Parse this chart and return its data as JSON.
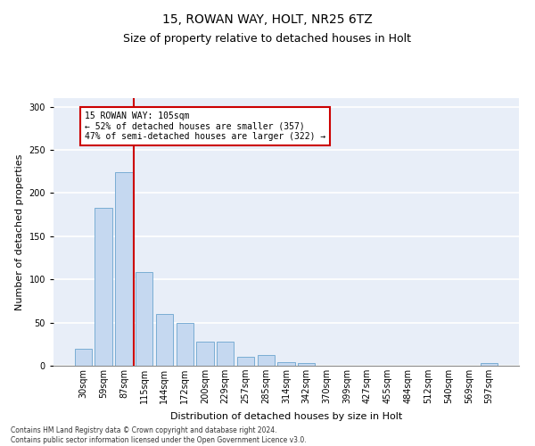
{
  "title1": "15, ROWAN WAY, HOLT, NR25 6TZ",
  "title2": "Size of property relative to detached houses in Holt",
  "xlabel": "Distribution of detached houses by size in Holt",
  "ylabel": "Number of detached properties",
  "bin_labels": [
    "30sqm",
    "59sqm",
    "87sqm",
    "115sqm",
    "144sqm",
    "172sqm",
    "200sqm",
    "229sqm",
    "257sqm",
    "285sqm",
    "314sqm",
    "342sqm",
    "370sqm",
    "399sqm",
    "427sqm",
    "455sqm",
    "484sqm",
    "512sqm",
    "540sqm",
    "569sqm",
    "597sqm"
  ],
  "bar_values": [
    20,
    183,
    224,
    108,
    60,
    50,
    28,
    28,
    10,
    12,
    4,
    3,
    0,
    0,
    0,
    0,
    0,
    0,
    0,
    0,
    3
  ],
  "bar_color": "#c5d8f0",
  "bar_edge_color": "#7aadd4",
  "vline_color": "#cc0000",
  "annotation_text": "15 ROWAN WAY: 105sqm\n← 52% of detached houses are smaller (357)\n47% of semi-detached houses are larger (322) →",
  "annotation_box_color": "white",
  "annotation_box_edge": "#cc0000",
  "footnote": "Contains HM Land Registry data © Crown copyright and database right 2024.\nContains public sector information licensed under the Open Government Licence v3.0.",
  "ylim": [
    0,
    310
  ],
  "yticks": [
    0,
    50,
    100,
    150,
    200,
    250,
    300
  ],
  "background_color": "#e8eef8",
  "title1_fontsize": 10,
  "title2_fontsize": 9,
  "ylabel_fontsize": 8,
  "xlabel_fontsize": 8,
  "tick_fontsize": 7,
  "footnote_fontsize": 5.5,
  "vline_x": 2.5
}
